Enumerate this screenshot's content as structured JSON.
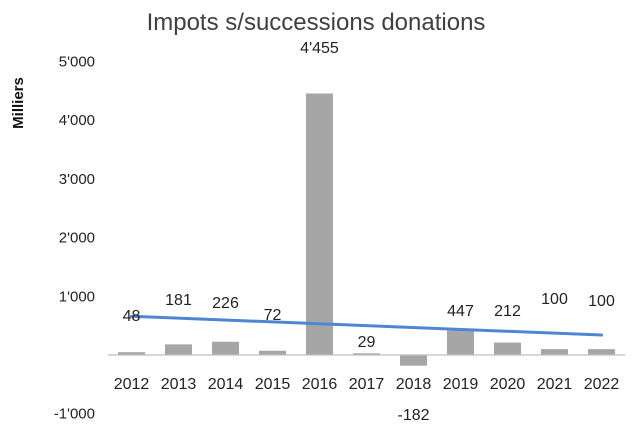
{
  "chart_data": {
    "type": "bar",
    "title": "Impots s/successions donations",
    "ylabel": "Milliers",
    "xlabel": "",
    "categories": [
      "2012",
      "2013",
      "2014",
      "2015",
      "2016",
      "2017",
      "2018",
      "2019",
      "2020",
      "2021",
      "2022"
    ],
    "values": [
      48,
      181,
      226,
      72,
      4455,
      29,
      -182,
      447,
      212,
      100,
      100
    ],
    "data_labels": [
      "48",
      "181",
      "226",
      "72",
      "4'455",
      "29",
      "-182",
      "447",
      "212",
      "100",
      "100"
    ],
    "yticks": [
      {
        "value": 5000,
        "label": "5'000"
      },
      {
        "value": 4000,
        "label": "4'000"
      },
      {
        "value": 3000,
        "label": "3'000"
      },
      {
        "value": 2000,
        "label": "2'000"
      },
      {
        "value": 1000,
        "label": "1'000"
      },
      {
        "value": -1000,
        "label": "-1'000"
      }
    ],
    "ylim": [
      -1000,
      5000
    ],
    "trendline": {
      "type": "linear",
      "start": 660,
      "end": 340
    },
    "grid": false,
    "bar_color": "#a6a6a6",
    "trend_color": "#4f86d4",
    "axis_color": "#bfbfbf"
  }
}
